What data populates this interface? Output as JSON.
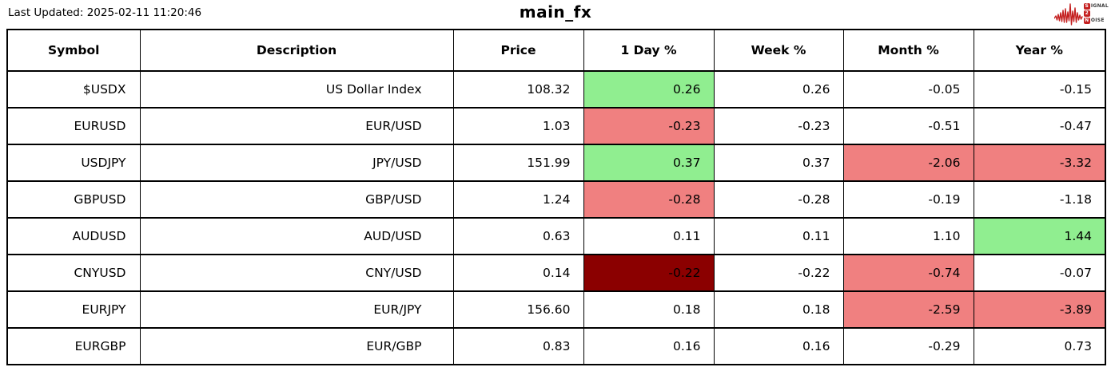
{
  "page": {
    "last_updated": "Last Updated: 2025-02-11 11:20:46",
    "title": "main_fx"
  },
  "logo": {
    "line1_boxed": "S",
    "line1_rest": "IGNAL",
    "line2_boxed": "2",
    "line2_rest": "",
    "line3_boxed": "N",
    "line3_rest": "OISE",
    "accent_color": "#c41f1f"
  },
  "colors": {
    "positive": "#90EE90",
    "negative": "#F08080",
    "negative_strong": "#8B0000",
    "border": "#000000"
  },
  "table": {
    "columns": [
      "Symbol",
      "Description",
      "Price",
      "1 Day %",
      "Week %",
      "Month %",
      "Year %"
    ],
    "rows": [
      {
        "cells": [
          {
            "v": "$USDX"
          },
          {
            "v": "US Dollar Index"
          },
          {
            "v": "108.32"
          },
          {
            "v": "0.26",
            "bg": "positive"
          },
          {
            "v": "0.26"
          },
          {
            "v": "-0.05"
          },
          {
            "v": "-0.15"
          }
        ]
      },
      {
        "cells": [
          {
            "v": "EURUSD"
          },
          {
            "v": "EUR/USD"
          },
          {
            "v": "1.03"
          },
          {
            "v": "-0.23",
            "bg": "negative"
          },
          {
            "v": "-0.23"
          },
          {
            "v": "-0.51"
          },
          {
            "v": "-0.47"
          }
        ]
      },
      {
        "cells": [
          {
            "v": "USDJPY"
          },
          {
            "v": "JPY/USD"
          },
          {
            "v": "151.99"
          },
          {
            "v": "0.37",
            "bg": "positive"
          },
          {
            "v": "0.37"
          },
          {
            "v": "-2.06",
            "bg": "negative"
          },
          {
            "v": "-3.32",
            "bg": "negative"
          }
        ]
      },
      {
        "cells": [
          {
            "v": "GBPUSD"
          },
          {
            "v": "GBP/USD"
          },
          {
            "v": "1.24"
          },
          {
            "v": "-0.28",
            "bg": "negative"
          },
          {
            "v": "-0.28"
          },
          {
            "v": "-0.19"
          },
          {
            "v": "-1.18"
          }
        ]
      },
      {
        "cells": [
          {
            "v": "AUDUSD"
          },
          {
            "v": "AUD/USD"
          },
          {
            "v": "0.63"
          },
          {
            "v": "0.11"
          },
          {
            "v": "0.11"
          },
          {
            "v": "1.10"
          },
          {
            "v": "1.44",
            "bg": "positive"
          }
        ]
      },
      {
        "cells": [
          {
            "v": "CNYUSD"
          },
          {
            "v": "CNY/USD"
          },
          {
            "v": "0.14"
          },
          {
            "v": "-0.22",
            "bg": "negative_strong"
          },
          {
            "v": "-0.22"
          },
          {
            "v": "-0.74",
            "bg": "negative"
          },
          {
            "v": "-0.07"
          }
        ]
      },
      {
        "cells": [
          {
            "v": "EURJPY"
          },
          {
            "v": "EUR/JPY"
          },
          {
            "v": "156.60"
          },
          {
            "v": "0.18"
          },
          {
            "v": "0.18"
          },
          {
            "v": "-2.59",
            "bg": "negative"
          },
          {
            "v": "-3.89",
            "bg": "negative"
          }
        ]
      },
      {
        "cells": [
          {
            "v": "EURGBP"
          },
          {
            "v": "EUR/GBP"
          },
          {
            "v": "0.83"
          },
          {
            "v": "0.16"
          },
          {
            "v": "0.16"
          },
          {
            "v": "-0.29"
          },
          {
            "v": "0.73"
          }
        ]
      }
    ]
  }
}
